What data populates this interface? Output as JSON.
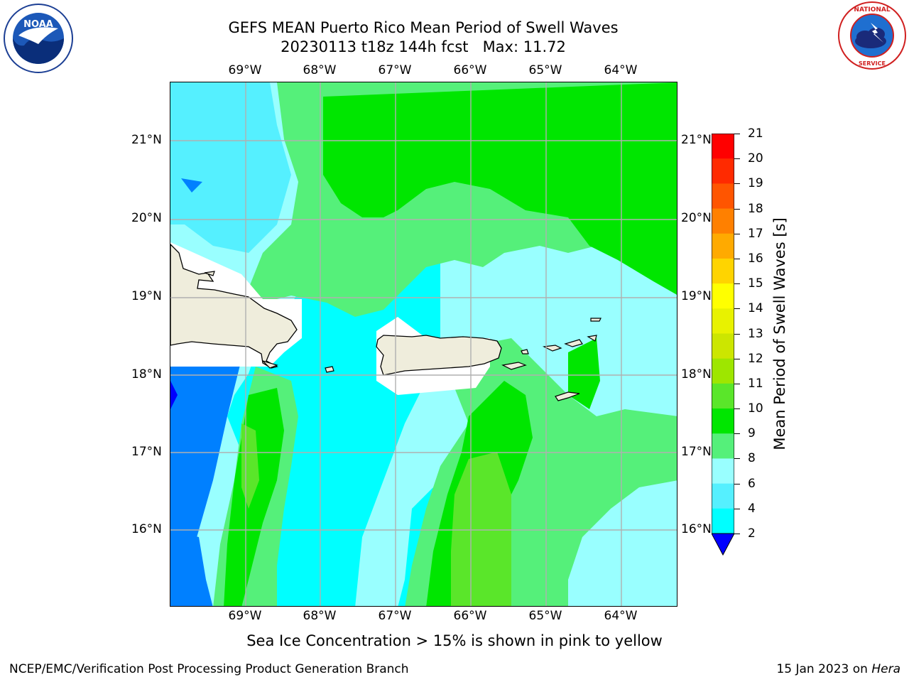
{
  "title": {
    "line1": "GEFS MEAN Puerto Rico Mean Period of Swell Waves",
    "line2": "20230113 t18z 144h fcst   Max: 11.72"
  },
  "logos": {
    "left": {
      "icon": "noaa-logo",
      "text": "NOAA"
    },
    "right": {
      "icon": "nws-logo",
      "text": "NATIONAL WEATHER SERVICE"
    }
  },
  "map": {
    "lon_labels": [
      "69°W",
      "68°W",
      "67°W",
      "66°W",
      "65°W",
      "64°W"
    ],
    "lat_labels": [
      "21°N",
      "20°N",
      "19°N",
      "18°N",
      "17°N",
      "16°N"
    ],
    "extent": {
      "lon": [
        -69.97,
        -63.25
      ],
      "lat": [
        15.04,
        21.75
      ]
    },
    "grid": true
  },
  "colorbar": {
    "label": "Mean Period of Swell Waves [s]",
    "ticks": [
      "21",
      "20",
      "19",
      "18",
      "17",
      "16",
      "15",
      "14",
      "13",
      "12",
      "11",
      "10",
      "9",
      "8",
      "6",
      "4",
      "2"
    ],
    "colors": [
      "#ff0000",
      "#ff2a00",
      "#ff5500",
      "#ff8000",
      "#ffaa00",
      "#ffd400",
      "#ffff00",
      "#e8f200",
      "#cce600",
      "#9ee600",
      "#5ae62a",
      "#00e600",
      "#55f07a",
      "#99ffff",
      "#55f0ff",
      "#00ffff",
      "#0080ff",
      "#0000ff"
    ]
  },
  "note": "Sea Ice Concentration > 15% is shown in pink to yellow",
  "footer": {
    "left": "NCEP/EMC/Verification Post Processing Product Generation Branch",
    "right_date": "15 Jan 2023 on ",
    "right_host": "Hera"
  }
}
